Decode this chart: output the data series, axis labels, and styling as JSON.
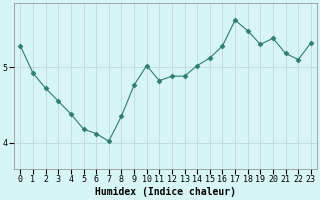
{
  "x": [
    0,
    1,
    2,
    3,
    4,
    5,
    6,
    7,
    8,
    9,
    10,
    11,
    12,
    13,
    14,
    15,
    16,
    17,
    18,
    19,
    20,
    21,
    22,
    23
  ],
  "y": [
    5.28,
    4.92,
    4.72,
    4.55,
    4.38,
    4.18,
    4.12,
    4.02,
    4.35,
    4.76,
    5.02,
    4.82,
    4.88,
    4.88,
    5.02,
    5.12,
    5.28,
    5.62,
    5.48,
    5.3,
    5.38,
    5.18,
    5.1,
    5.32
  ],
  "line_color": "#2e7d70",
  "marker": "D",
  "marker_size": 2.5,
  "bg_color": "#d8f5f5",
  "grid_color": "#c0d8d8",
  "xlabel": "Humidex (Indice chaleur)",
  "xlabel_fontsize": 7,
  "tick_fontsize": 6,
  "yticks": [
    4,
    5
  ],
  "ylim": [
    3.65,
    5.85
  ],
  "xlim": [
    -0.5,
    23.5
  ]
}
